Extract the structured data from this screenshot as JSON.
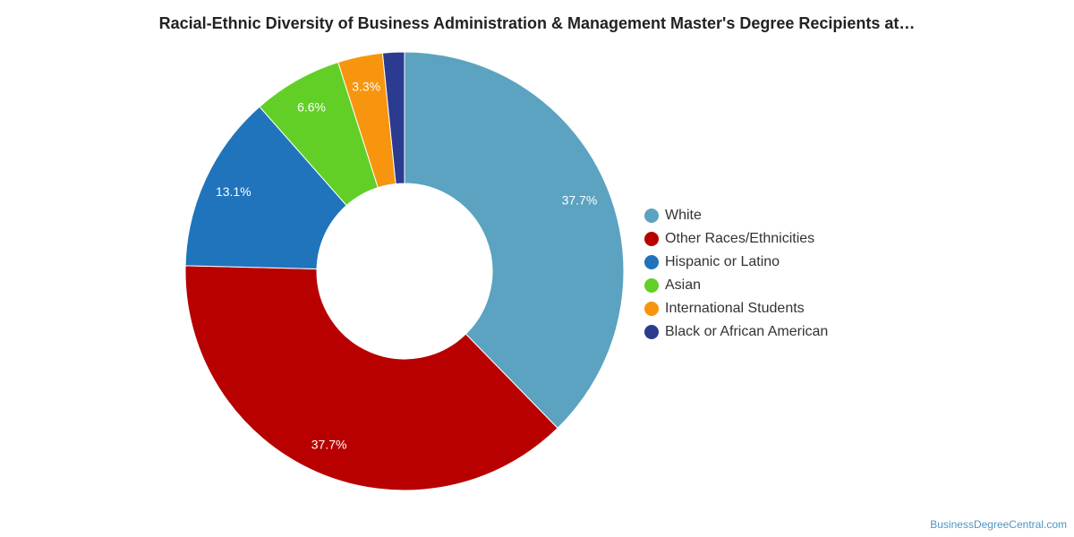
{
  "chart_data": {
    "type": "pie",
    "title": "Racial-Ethnic Diversity of Business Administration & Management Master's Degree Recipients at…",
    "donut": true,
    "legend_position": "right",
    "series": [
      {
        "name": "White",
        "value": 37.7,
        "label": "37.7%",
        "color": "#5ba3c0"
      },
      {
        "name": "Other Races/Ethnicities",
        "value": 37.7,
        "label": "37.7%",
        "color": "#b80000"
      },
      {
        "name": "Hispanic or Latino",
        "value": 13.1,
        "label": "13.1%",
        "color": "#1f74bb"
      },
      {
        "name": "Asian",
        "value": 6.6,
        "label": "6.6%",
        "color": "#62cf27"
      },
      {
        "name": "International Students",
        "value": 3.3,
        "label": "3.3%",
        "color": "#f7950f"
      },
      {
        "name": "Black or African American",
        "value": 1.6,
        "label": "",
        "color": "#2b3b8f"
      }
    ]
  },
  "watermark": "BusinessDegreeCentral.com"
}
